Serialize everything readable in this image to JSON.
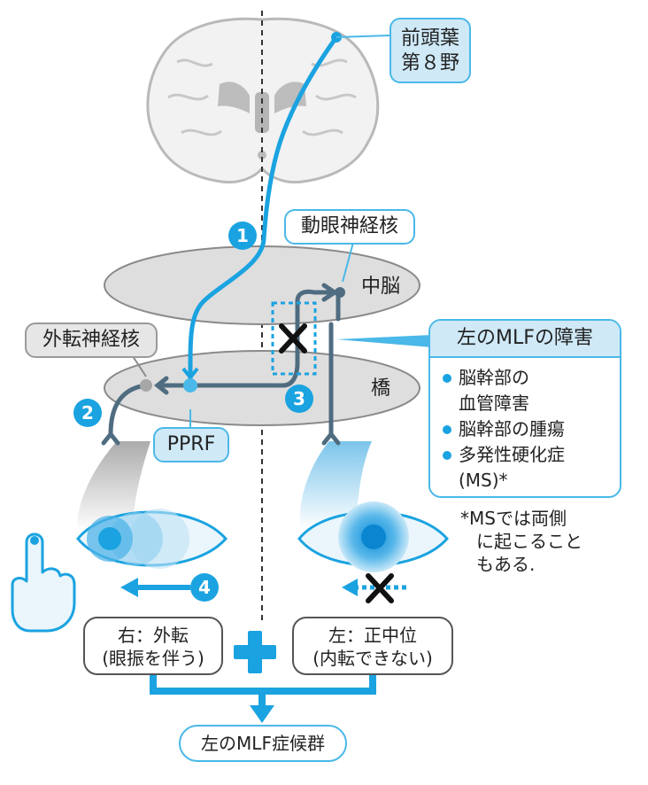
{
  "labels": {
    "frontal_eye_field_line1": "前頭葉",
    "frontal_eye_field_line2": "第８野",
    "oculomotor_nucleus": "動眼神経核",
    "midbrain": "中脳",
    "abducens_nucleus": "外転神経核",
    "pons": "橋",
    "pprf": "PPRF"
  },
  "numbers": [
    "1",
    "2",
    "3",
    "4"
  ],
  "mlf_box": {
    "title": "左のMLFの障害",
    "items": [
      [
        "脳幹部の",
        "血管障害"
      ],
      [
        "脳幹部の腫瘍"
      ],
      [
        "多発性硬化症",
        "(MS)*"
      ]
    ]
  },
  "footnote": [
    "*MSでは両側",
    "に起こること",
    "もある."
  ],
  "right_eye_box": [
    "右：外転",
    "(眼振を伴う)"
  ],
  "left_eye_box": [
    "左：正中位",
    "(内転できない)"
  ],
  "plus": "+",
  "result": "左のMLF症候群",
  "colors": {
    "accent_blue": "#1aa3e0",
    "light_blue": "#cfe9f7",
    "nerve_dark": "#4f6c80",
    "grey": "#9a9a9a"
  },
  "icons": [
    "brain-icon",
    "hand-pointing-icon",
    "eye-icon",
    "lesion-x-icon",
    "arrow-left-icon"
  ]
}
